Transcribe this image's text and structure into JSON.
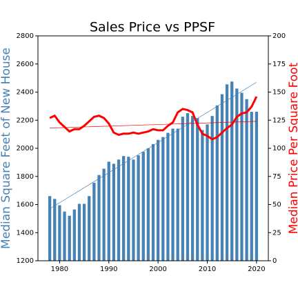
{
  "chart_data": {
    "type": "bar_line",
    "title": "Sales Price vs PPSF",
    "ylabel": "Median Square Feet of New House",
    "y2label": "Median Price Per Square Foot",
    "x": [
      1978,
      1979,
      1980,
      1981,
      1982,
      1983,
      1984,
      1985,
      1986,
      1987,
      1988,
      1989,
      1990,
      1991,
      1992,
      1993,
      1994,
      1995,
      1996,
      1997,
      1998,
      1999,
      2000,
      2001,
      2002,
      2003,
      2004,
      2005,
      2006,
      2007,
      2008,
      2009,
      2010,
      2011,
      2012,
      2013,
      2014,
      2015,
      2016,
      2017,
      2018,
      2019,
      2020
    ],
    "series": [
      {
        "kind": "bar",
        "color": "#4682b4",
        "values": [
          1660,
          1640,
          1595,
          1550,
          1520,
          1565,
          1605,
          1605,
          1660,
          1755,
          1810,
          1855,
          1905,
          1890,
          1920,
          1945,
          1940,
          1920,
          1950,
          1975,
          2000,
          2030,
          2060,
          2080,
          2110,
          2140,
          2140,
          2225,
          2250,
          2230,
          2215,
          2130,
          2170,
          2230,
          2305,
          2385,
          2455,
          2475,
          2425,
          2395,
          2350,
          2260,
          2260
        ]
      },
      {
        "kind": "line",
        "axis": "y2",
        "color": "#ff0000",
        "values": [
          127,
          129,
          123,
          119,
          115,
          117,
          117,
          120,
          124,
          128,
          129,
          127,
          122,
          114,
          112,
          113,
          113,
          114,
          113,
          114,
          115,
          117,
          116,
          116,
          120,
          123,
          132,
          135,
          134,
          132,
          121,
          113,
          111,
          108,
          110,
          114,
          118,
          121,
          128,
          131,
          132,
          137,
          146
        ]
      }
    ],
    "trendlines": [
      {
        "color": "#4682b4",
        "x": [
          1978,
          2020
        ],
        "values": [
          1570,
          2470
        ]
      },
      {
        "axis": "y2",
        "color": "#ff0000",
        "x": [
          1978,
          2020
        ],
        "values": [
          118,
          124
        ]
      }
    ],
    "xlim": [
      1975.6,
      2022.4
    ],
    "xticks": [
      1980,
      1990,
      2000,
      2010,
      2020
    ],
    "ylim": [
      1200,
      2800
    ],
    "yticks": [
      1200,
      1400,
      1600,
      1800,
      2000,
      2200,
      2400,
      2600,
      2800
    ],
    "y2lim": [
      0,
      200
    ],
    "y2ticks": [
      0,
      25,
      50,
      75,
      100,
      125,
      150,
      175,
      200
    ],
    "ylabel_color": "#4682b4",
    "y2label_color": "#ff0000"
  }
}
